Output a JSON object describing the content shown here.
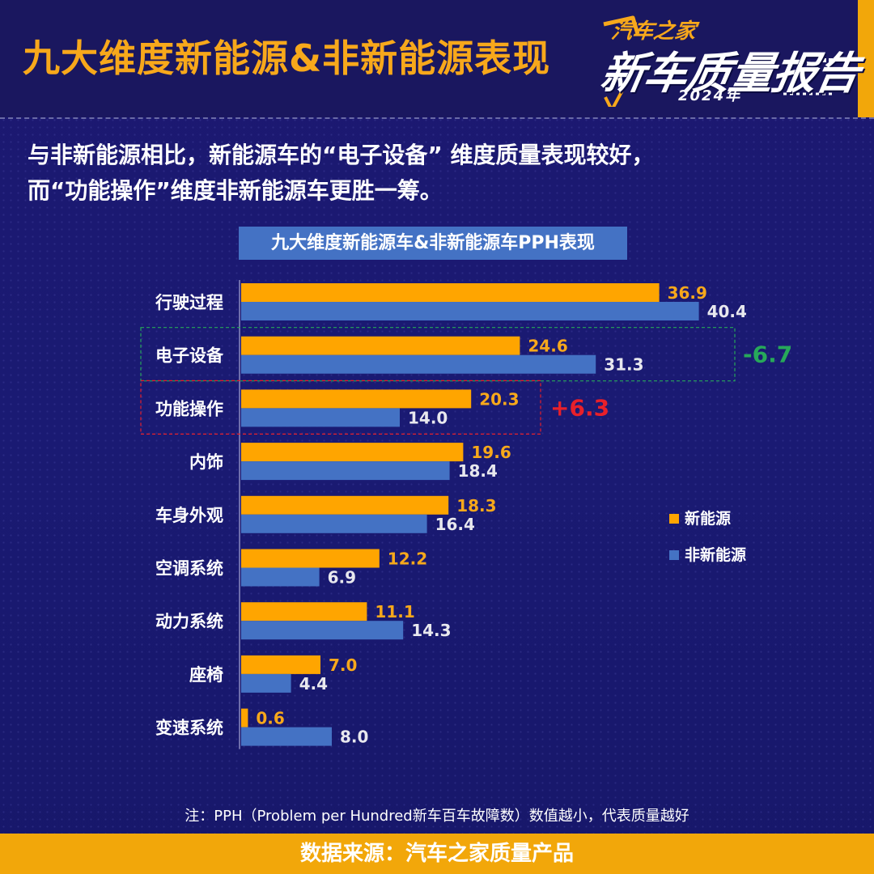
{
  "header": {
    "title": "九大维度新能源&非新能源表现",
    "logo": {
      "brand": "汽车之家",
      "report": "新车质量报告",
      "year": "2024年"
    }
  },
  "subtitle": {
    "line1": "与非新能源相比，新能源车的“电子设备” 维度质量表现较好，",
    "line2": "而“功能操作”维度非新能源车更胜一筹。"
  },
  "colors": {
    "new_energy": "#ffa500",
    "non_new_energy": "#4472c4",
    "title_orange": "#f7a81b",
    "green": "#27a85a",
    "red": "#e8202a"
  },
  "chart_data": {
    "type": "bar",
    "orientation": "horizontal",
    "title": "九大维度新能源车&非新能源车PPH表现",
    "categories": [
      "行驶过程",
      "电子设备",
      "功能操作",
      "内饰",
      "车身外观",
      "空调系统",
      "动力系统",
      "座椅",
      "变速系统"
    ],
    "series": [
      {
        "name": "新能源",
        "values": [
          36.9,
          24.6,
          20.3,
          19.6,
          18.3,
          12.2,
          11.1,
          7.0,
          0.6
        ]
      },
      {
        "name": "非新能源",
        "values": [
          40.4,
          31.3,
          14.0,
          18.4,
          16.4,
          6.9,
          14.3,
          4.4,
          8.0
        ]
      }
    ],
    "legend_position": "right",
    "annotations": [
      {
        "category": "电子设备",
        "text": "-6.7",
        "color": "green"
      },
      {
        "category": "功能操作",
        "text": "+6.3",
        "color": "red"
      }
    ]
  },
  "footnote": "注：PPH（Problem per Hundred新车百车故障数）数值越小，代表质量越好",
  "footer": "数据来源：汽车之家质量产品"
}
